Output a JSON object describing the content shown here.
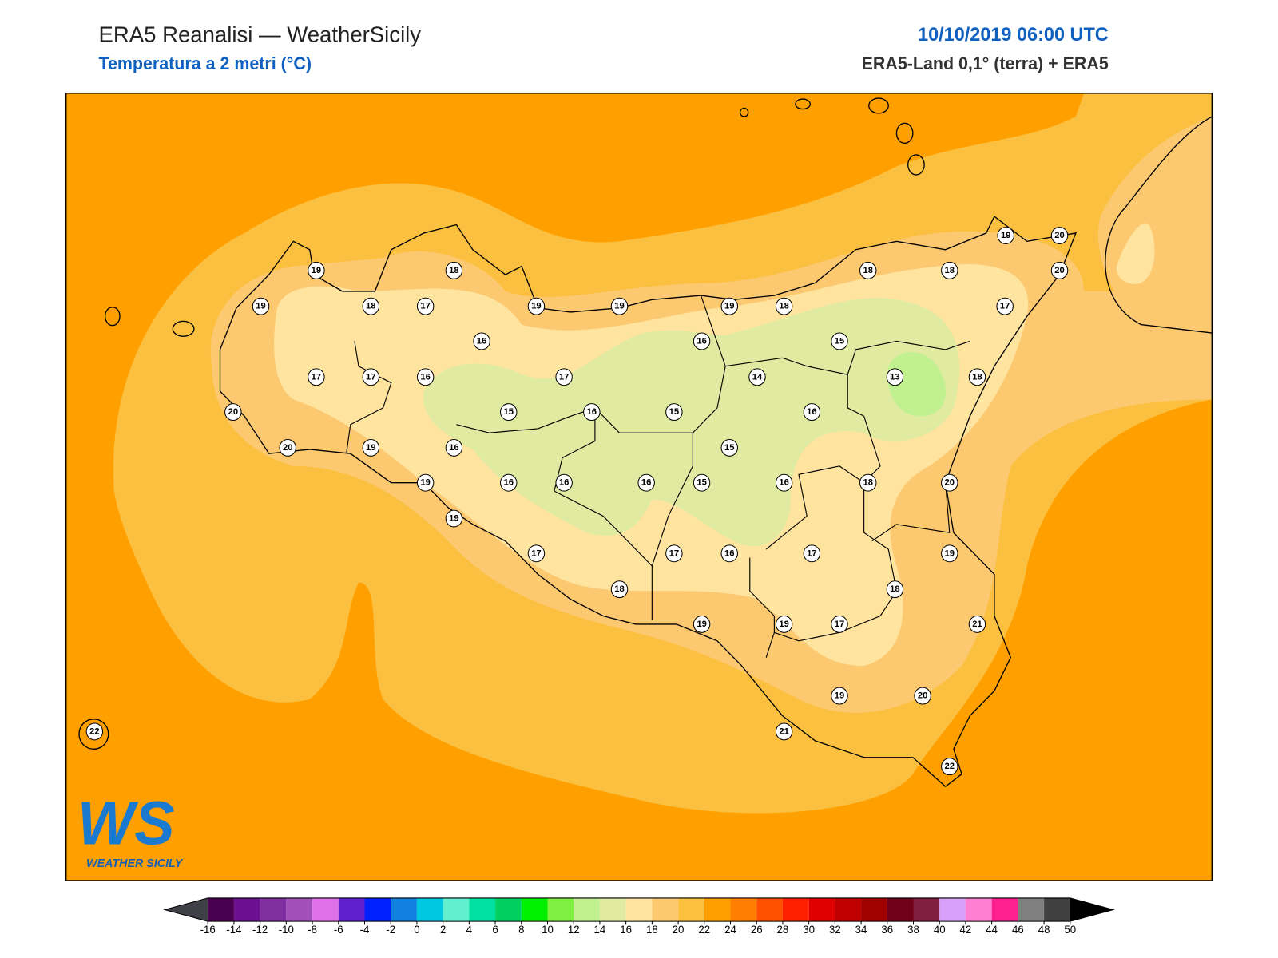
{
  "header": {
    "title": "ERA5 Reanalisi — WeatherSicily",
    "subtitle": "Temperatura a 2 metri (°C)",
    "datetime": "10/10/2019 06:00 UTC",
    "source": "ERA5-Land 0,1° (terra) + ERA5"
  },
  "stations": [
    19,
    18,
    19,
    18,
    17,
    19,
    19,
    19,
    18,
    18,
    18,
    19,
    20,
    20,
    17,
    16,
    16,
    15,
    17,
    17,
    16,
    17,
    14,
    13,
    18,
    20,
    15,
    16,
    15,
    16,
    20,
    19,
    16,
    15,
    19,
    16,
    16,
    16,
    15,
    16,
    18,
    20,
    19,
    17,
    17,
    16,
    17,
    19,
    18,
    18,
    19,
    19,
    17,
    21,
    19,
    20,
    21,
    22,
    22
  ],
  "colorbar": {
    "ticks": [
      -16,
      -14,
      -12,
      -10,
      -8,
      -6,
      -4,
      -2,
      0,
      2,
      4,
      6,
      8,
      10,
      12,
      14,
      16,
      18,
      20,
      22,
      24,
      26,
      28,
      30,
      32,
      34,
      36,
      38,
      40,
      42,
      44,
      46,
      48,
      50
    ],
    "colors": [
      "#4a0050",
      "#6a1090",
      "#8030a0",
      "#a050b8",
      "#e070e8",
      "#6020d0",
      "#0020ff",
      "#1080e0",
      "#00c8e0",
      "#60f0d0",
      "#00e0a0",
      "#00d060",
      "#00f000",
      "#80f040",
      "#c0f090",
      "#e0eaa0",
      "#ffe4a0",
      "#fcc870",
      "#fcc040",
      "#ffa000",
      "#ff8000",
      "#ff5000",
      "#ff2000",
      "#e00000",
      "#c00000",
      "#a00000",
      "#700018",
      "#802040",
      "#d8a0f8",
      "#ff80d0",
      "#ff2090",
      "#808080",
      "#404040"
    ],
    "under_color": "#404048",
    "over_color": "#000000"
  },
  "logo": {
    "text": "WS",
    "caption": "WEATHER SICILY"
  }
}
